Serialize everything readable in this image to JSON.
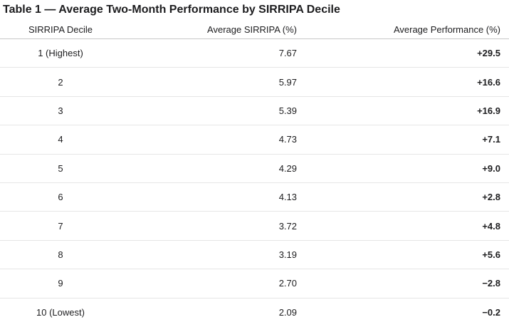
{
  "table": {
    "title": "Table 1 — Average Two-Month Performance by SIRRIPA Decile",
    "header": [
      "SIRRIPA Decile",
      "Average SIRRIPA (%)",
      "Average Performance (%)"
    ],
    "rows": [
      [
        "1 (Highest)",
        "7.67",
        "+29.5"
      ],
      [
        "2",
        "5.97",
        "+16.6"
      ],
      [
        "3",
        "5.39",
        "+16.9"
      ],
      [
        "4",
        "4.73",
        "+7.1"
      ],
      [
        "5",
        "4.29",
        "+9.0"
      ],
      [
        "6",
        "4.13",
        "+2.8"
      ],
      [
        "7",
        "3.72",
        "+4.8"
      ],
      [
        "8",
        "3.19",
        "+5.6"
      ],
      [
        "9",
        "2.70",
        "−2.8"
      ],
      [
        "10 (Lowest)",
        "2.09",
        "−0.2"
      ]
    ]
  }
}
